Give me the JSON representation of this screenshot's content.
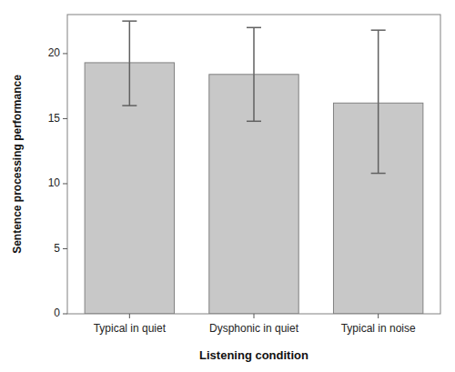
{
  "chart_data": {
    "type": "bar",
    "categories": [
      "Typical in quiet",
      "Dysphonic in quiet",
      "Typical in noise"
    ],
    "values": [
      19.3,
      18.4,
      16.2
    ],
    "errors_upper": [
      3.2,
      3.6,
      5.6
    ],
    "errors_lower": [
      3.3,
      3.6,
      5.4
    ],
    "color": "#c8c8c8",
    "xlabel": "Listening condition",
    "ylabel": "Sentence processing performance",
    "ylim": [
      0,
      23
    ],
    "yticks": [
      0,
      5,
      10,
      15,
      20
    ],
    "grid": false
  }
}
